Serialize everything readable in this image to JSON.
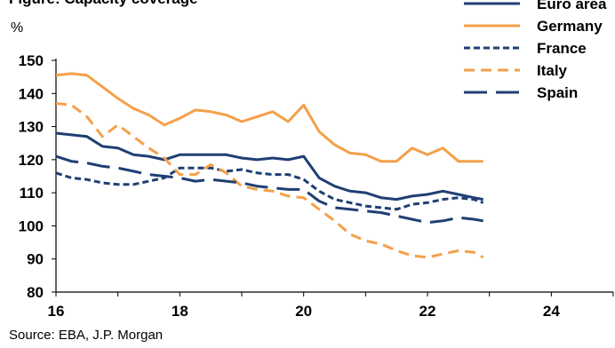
{
  "chart_data": {
    "type": "line",
    "title": "Figure: Capacity coverage",
    "ylabel": "%",
    "ylim": [
      80,
      150
    ],
    "yticks": [
      80,
      90,
      100,
      110,
      120,
      130,
      140,
      150
    ],
    "xlim": [
      16,
      25
    ],
    "xticks": [
      16,
      18,
      20,
      22,
      24
    ],
    "grid": false,
    "legend_position": "top-right",
    "series": [
      {
        "name": "Euro area",
        "color": "#1f3f73",
        "style": "solid",
        "x": [
          16.0,
          16.25,
          16.5,
          16.75,
          17.0,
          17.25,
          17.5,
          17.75,
          18.0,
          18.25,
          18.5,
          18.75,
          19.0,
          19.25,
          19.5,
          19.75,
          20.0,
          20.25,
          20.5,
          20.75,
          21.0,
          21.25,
          21.5,
          21.75,
          22.0,
          22.25,
          22.5,
          22.75,
          22.9
        ],
        "y": [
          128,
          127.5,
          127,
          124,
          123.5,
          121.5,
          121,
          120,
          121.5,
          121.5,
          121.5,
          121.5,
          120.5,
          120,
          120.5,
          120,
          121,
          114.5,
          112,
          110.5,
          110,
          108.5,
          108,
          109,
          109.5,
          110.5,
          109.5,
          108.5,
          108
        ]
      },
      {
        "name": "Germany",
        "color": "#f4a04a",
        "style": "solid",
        "x": [
          16.0,
          16.25,
          16.5,
          16.75,
          17.0,
          17.25,
          17.5,
          17.75,
          18.0,
          18.25,
          18.5,
          18.75,
          19.0,
          19.25,
          19.5,
          19.75,
          20.0,
          20.25,
          20.5,
          20.75,
          21.0,
          21.25,
          21.5,
          21.75,
          22.0,
          22.25,
          22.5,
          22.75,
          22.9
        ],
        "y": [
          145.5,
          146,
          145.5,
          142,
          138.5,
          135.5,
          133.5,
          130.5,
          132.5,
          135,
          134.5,
          133.5,
          131.5,
          133,
          134.5,
          131.5,
          136.5,
          128.5,
          124.5,
          122,
          121.5,
          119.5,
          119.5,
          123.5,
          121.5,
          123.5,
          119.5,
          119.5,
          119.5
        ]
      },
      {
        "name": "France",
        "color": "#1f3f73",
        "style": "dotted",
        "x": [
          16.0,
          16.25,
          16.5,
          16.75,
          17.0,
          17.25,
          17.5,
          17.75,
          18.0,
          18.25,
          18.5,
          18.75,
          19.0,
          19.25,
          19.5,
          19.75,
          20.0,
          20.25,
          20.5,
          20.75,
          21.0,
          21.25,
          21.5,
          21.75,
          22.0,
          22.25,
          22.5,
          22.75,
          22.9
        ],
        "y": [
          116,
          114.5,
          114,
          113,
          112.5,
          112.5,
          113.5,
          114.5,
          117.5,
          117.5,
          117.5,
          116.5,
          117,
          116,
          115.5,
          115.5,
          114,
          110.5,
          108,
          107,
          106,
          105.5,
          105,
          106.5,
          107,
          108,
          108.5,
          108,
          107
        ]
      },
      {
        "name": "Italy",
        "color": "#f4a04a",
        "style": "dashed",
        "x": [
          16.0,
          16.25,
          16.5,
          16.75,
          17.0,
          17.25,
          17.5,
          17.75,
          18.0,
          18.25,
          18.5,
          18.75,
          19.0,
          19.25,
          19.5,
          19.75,
          20.0,
          20.25,
          20.5,
          20.75,
          21.0,
          21.25,
          21.5,
          21.75,
          22.0,
          22.25,
          22.5,
          22.75,
          22.9
        ],
        "y": [
          137,
          136.5,
          133,
          127,
          130.5,
          127,
          123.5,
          120.5,
          115.5,
          115.5,
          118.5,
          116,
          112,
          111,
          110.5,
          109,
          108.5,
          105,
          101.5,
          97.5,
          95.5,
          94.5,
          92.5,
          91,
          90.5,
          91.5,
          92.5,
          92,
          90.5
        ]
      },
      {
        "name": "Spain",
        "color": "#1f3f73",
        "style": "longdash",
        "x": [
          16.0,
          16.25,
          16.5,
          16.75,
          17.0,
          17.25,
          17.5,
          17.75,
          18.0,
          18.25,
          18.5,
          18.75,
          19.0,
          19.25,
          19.5,
          19.75,
          20.0,
          20.25,
          20.5,
          20.75,
          21.0,
          21.25,
          21.5,
          21.75,
          22.0,
          22.25,
          22.5,
          22.75,
          22.9
        ],
        "y": [
          121,
          119.5,
          119,
          118,
          117.5,
          116.5,
          115.5,
          115,
          114.5,
          113.5,
          114,
          113.5,
          113,
          112,
          111.5,
          111,
          111,
          107.5,
          105.5,
          105,
          104.5,
          104,
          103,
          102,
          101,
          101.5,
          102.5,
          102,
          101.5
        ]
      }
    ],
    "source": "Source: EBA, J.P. Morgan"
  }
}
